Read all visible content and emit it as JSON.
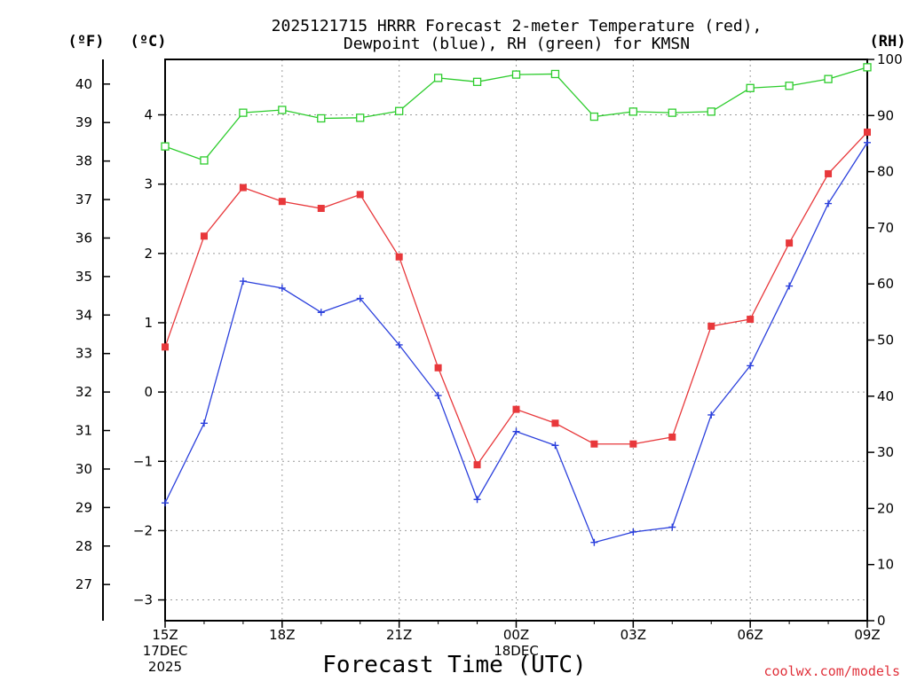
{
  "chart_data": {
    "type": "line",
    "title_line1": "2025121715 HRRR Forecast 2-meter Temperature (red),",
    "title_line2": "Dewpoint (blue), RH (green) for KMSN",
    "xlabel": "Forecast Time (UTC)",
    "credit": "coolwx.com/models",
    "units": {
      "fahrenheit": "(ºF)",
      "celsius": "(ºC)",
      "rh": "(RH)"
    },
    "x_hours": [
      0,
      1,
      2,
      3,
      4,
      5,
      6,
      7,
      8,
      9,
      10,
      11,
      12,
      13,
      14,
      15,
      16,
      17,
      18
    ],
    "x_ticks": [
      {
        "hour": 0,
        "label": "15Z",
        "sub1": "17DEC",
        "sub2": "2025"
      },
      {
        "hour": 3,
        "label": "18Z",
        "sub1": "",
        "sub2": ""
      },
      {
        "hour": 6,
        "label": "21Z",
        "sub1": "",
        "sub2": ""
      },
      {
        "hour": 9,
        "label": "00Z",
        "sub1": "18DEC",
        "sub2": ""
      },
      {
        "hour": 12,
        "label": "03Z",
        "sub1": "",
        "sub2": ""
      },
      {
        "hour": 15,
        "label": "06Z",
        "sub1": "",
        "sub2": ""
      },
      {
        "hour": 18,
        "label": "09Z",
        "sub1": "",
        "sub2": ""
      }
    ],
    "celsius_axis": {
      "min": -3.3,
      "max": 4.8,
      "ticks": [
        -3,
        -2,
        -1,
        0,
        1,
        2,
        3,
        4
      ],
      "tick_labels": [
        "−3",
        "−2",
        "−1",
        "0",
        "1",
        "2",
        "3",
        "4"
      ]
    },
    "fahrenheit_axis": {
      "ticks": [
        27,
        28,
        29,
        30,
        31,
        32,
        33,
        34,
        35,
        36,
        37,
        38,
        39,
        40
      ]
    },
    "rh_axis": {
      "min": 0,
      "max": 100,
      "ticks": [
        0,
        10,
        20,
        30,
        40,
        50,
        60,
        70,
        80,
        90,
        100
      ]
    },
    "series": [
      {
        "name": "2-meter Temperature",
        "axis": "celsius",
        "color": "#e8383b",
        "marker": "filled-square",
        "values": [
          0.65,
          2.25,
          2.95,
          2.75,
          2.65,
          2.85,
          1.95,
          0.35,
          -1.05,
          -0.25,
          -0.45,
          -0.75,
          -0.75,
          -0.65,
          0.95,
          1.05,
          2.15,
          3.15,
          3.75
        ]
      },
      {
        "name": "Dewpoint",
        "axis": "celsius",
        "color": "#2a3fdc",
        "marker": "plus",
        "values": [
          -1.6,
          -0.45,
          1.6,
          1.5,
          1.15,
          1.35,
          0.68,
          -0.05,
          -1.55,
          -0.57,
          -0.77,
          -2.17,
          -2.02,
          -1.95,
          -0.33,
          0.38,
          1.53,
          2.72,
          3.6
        ]
      },
      {
        "name": "RH",
        "axis": "rh",
        "color": "#2ccc2c",
        "marker": "open-square",
        "values": [
          84.5,
          82,
          90.5,
          91,
          89.5,
          89.6,
          90.8,
          96.7,
          96,
          97.3,
          97.4,
          89.8,
          90.7,
          90.5,
          90.7,
          94.9,
          95.3,
          96.5,
          98.6
        ]
      }
    ]
  }
}
